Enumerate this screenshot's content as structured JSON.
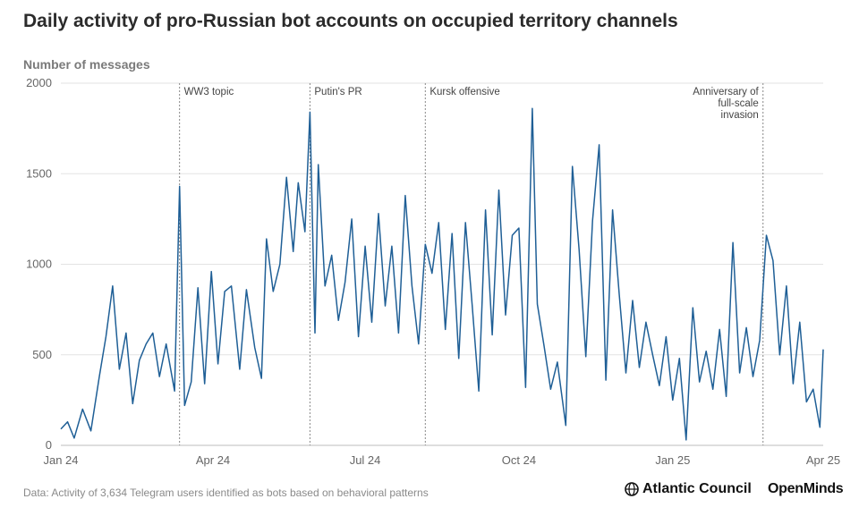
{
  "title": "Daily activity of pro-Russian bot accounts on occupied territory channels",
  "source": "Data: Activity of 3,634 Telegram users identified as bots based on behavioral patterns",
  "logos": {
    "atlantic_council": "Atlantic Council",
    "openminds": "OpenMinds"
  },
  "colors": {
    "line": "#1f5f96",
    "grid": "#e3e3e3",
    "annotation": "#888888"
  },
  "chart_data": {
    "type": "line",
    "title": "Daily activity of pro-Russian bot accounts on occupied territory channels",
    "ylabel": "Number of messages",
    "xlabel": "",
    "ylim": [
      0,
      2000
    ],
    "yticks": [
      0,
      500,
      1000,
      1500,
      2000
    ],
    "xlim": [
      "2024-01-01",
      "2025-04-01"
    ],
    "xticks": [
      {
        "date": "2024-01-01",
        "label": "Jan 24"
      },
      {
        "date": "2024-04-01",
        "label": "Apr 24"
      },
      {
        "date": "2024-07-01",
        "label": "Jul 24"
      },
      {
        "date": "2024-10-01",
        "label": "Oct 24"
      },
      {
        "date": "2025-01-01",
        "label": "Jan 25"
      },
      {
        "date": "2025-04-01",
        "label": "Apr 25"
      }
    ],
    "grid": "horizontal",
    "annotations": [
      {
        "date": "2024-03-12",
        "lines": [
          "WW3 topic"
        ],
        "align": "left"
      },
      {
        "date": "2024-05-29",
        "lines": [
          "Putin's PR"
        ],
        "align": "left"
      },
      {
        "date": "2024-08-06",
        "lines": [
          "Kursk offensive"
        ],
        "align": "left"
      },
      {
        "date": "2025-02-24",
        "lines": [
          "Anniversary of",
          "full-scale",
          "invasion"
        ],
        "align": "right"
      }
    ],
    "series": [
      {
        "values": [
          [
            "2024-01-01",
            90
          ],
          [
            "2024-01-05",
            130
          ],
          [
            "2024-01-09",
            40
          ],
          [
            "2024-01-14",
            200
          ],
          [
            "2024-01-19",
            80
          ],
          [
            "2024-01-24",
            380
          ],
          [
            "2024-01-28",
            600
          ],
          [
            "2024-02-01",
            880
          ],
          [
            "2024-02-05",
            420
          ],
          [
            "2024-02-09",
            620
          ],
          [
            "2024-02-13",
            230
          ],
          [
            "2024-02-17",
            470
          ],
          [
            "2024-02-21",
            560
          ],
          [
            "2024-02-25",
            620
          ],
          [
            "2024-02-29",
            380
          ],
          [
            "2024-03-04",
            560
          ],
          [
            "2024-03-09",
            300
          ],
          [
            "2024-03-12",
            1430
          ],
          [
            "2024-03-15",
            220
          ],
          [
            "2024-03-19",
            350
          ],
          [
            "2024-03-23",
            870
          ],
          [
            "2024-03-27",
            340
          ],
          [
            "2024-03-31",
            960
          ],
          [
            "2024-04-04",
            450
          ],
          [
            "2024-04-08",
            850
          ],
          [
            "2024-04-12",
            880
          ],
          [
            "2024-04-17",
            420
          ],
          [
            "2024-04-21",
            860
          ],
          [
            "2024-04-26",
            540
          ],
          [
            "2024-04-30",
            370
          ],
          [
            "2024-05-03",
            1140
          ],
          [
            "2024-05-07",
            850
          ],
          [
            "2024-05-11",
            1000
          ],
          [
            "2024-05-15",
            1480
          ],
          [
            "2024-05-19",
            1070
          ],
          [
            "2024-05-22",
            1450
          ],
          [
            "2024-05-26",
            1180
          ],
          [
            "2024-05-29",
            1840
          ],
          [
            "2024-06-01",
            620
          ],
          [
            "2024-06-03",
            1550
          ],
          [
            "2024-06-07",
            880
          ],
          [
            "2024-06-11",
            1050
          ],
          [
            "2024-06-15",
            690
          ],
          [
            "2024-06-19",
            900
          ],
          [
            "2024-06-23",
            1250
          ],
          [
            "2024-06-27",
            600
          ],
          [
            "2024-07-01",
            1100
          ],
          [
            "2024-07-05",
            680
          ],
          [
            "2024-07-09",
            1280
          ],
          [
            "2024-07-13",
            770
          ],
          [
            "2024-07-17",
            1100
          ],
          [
            "2024-07-21",
            620
          ],
          [
            "2024-07-25",
            1380
          ],
          [
            "2024-07-29",
            880
          ],
          [
            "2024-08-02",
            560
          ],
          [
            "2024-08-06",
            1110
          ],
          [
            "2024-08-10",
            950
          ],
          [
            "2024-08-14",
            1230
          ],
          [
            "2024-08-18",
            640
          ],
          [
            "2024-08-22",
            1170
          ],
          [
            "2024-08-26",
            480
          ],
          [
            "2024-08-30",
            1230
          ],
          [
            "2024-09-03",
            780
          ],
          [
            "2024-09-07",
            300
          ],
          [
            "2024-09-11",
            1300
          ],
          [
            "2024-09-15",
            610
          ],
          [
            "2024-09-19",
            1410
          ],
          [
            "2024-09-23",
            720
          ],
          [
            "2024-09-27",
            1160
          ],
          [
            "2024-10-01",
            1200
          ],
          [
            "2024-10-05",
            320
          ],
          [
            "2024-10-09",
            1860
          ],
          [
            "2024-10-12",
            780
          ],
          [
            "2024-10-16",
            550
          ],
          [
            "2024-10-20",
            310
          ],
          [
            "2024-10-24",
            460
          ],
          [
            "2024-10-29",
            110
          ],
          [
            "2024-11-02",
            1540
          ],
          [
            "2024-11-06",
            1080
          ],
          [
            "2024-11-10",
            490
          ],
          [
            "2024-11-14",
            1240
          ],
          [
            "2024-11-18",
            1660
          ],
          [
            "2024-11-22",
            360
          ],
          [
            "2024-11-26",
            1300
          ],
          [
            "2024-11-30",
            830
          ],
          [
            "2024-12-04",
            400
          ],
          [
            "2024-12-08",
            800
          ],
          [
            "2024-12-12",
            430
          ],
          [
            "2024-12-16",
            680
          ],
          [
            "2024-12-20",
            500
          ],
          [
            "2024-12-24",
            330
          ],
          [
            "2024-12-28",
            600
          ],
          [
            "2025-01-01",
            250
          ],
          [
            "2025-01-05",
            480
          ],
          [
            "2025-01-09",
            30
          ],
          [
            "2025-01-13",
            760
          ],
          [
            "2025-01-17",
            350
          ],
          [
            "2025-01-21",
            520
          ],
          [
            "2025-01-25",
            310
          ],
          [
            "2025-01-29",
            640
          ],
          [
            "2025-02-02",
            270
          ],
          [
            "2025-02-06",
            1120
          ],
          [
            "2025-02-10",
            400
          ],
          [
            "2025-02-14",
            650
          ],
          [
            "2025-02-18",
            380
          ],
          [
            "2025-02-22",
            580
          ],
          [
            "2025-02-26",
            1160
          ],
          [
            "2025-03-02",
            1020
          ],
          [
            "2025-03-06",
            500
          ],
          [
            "2025-03-10",
            880
          ],
          [
            "2025-03-14",
            340
          ],
          [
            "2025-03-18",
            680
          ],
          [
            "2025-03-22",
            240
          ],
          [
            "2025-03-26",
            310
          ],
          [
            "2025-03-30",
            100
          ],
          [
            "2025-04-01",
            530
          ]
        ]
      }
    ]
  }
}
